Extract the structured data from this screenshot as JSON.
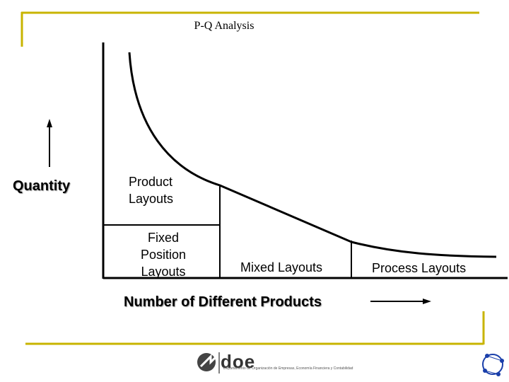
{
  "title": "P-Q Analysis",
  "y_axis_label": "Quantity",
  "x_axis_label": "Number of Different Products",
  "regions": {
    "product": [
      "Product",
      "Layouts"
    ],
    "fixed": [
      "Fixed",
      "Position",
      "Layouts"
    ],
    "mixed": "Mixed Layouts",
    "process": "Process Layouts"
  },
  "logo": {
    "name": "doe",
    "subtitle": "Departamento de Organización de Empresas, Economía Financiera y Contabilidad"
  },
  "colors": {
    "frame_accent": "#c8b400",
    "ink": "#000000"
  }
}
